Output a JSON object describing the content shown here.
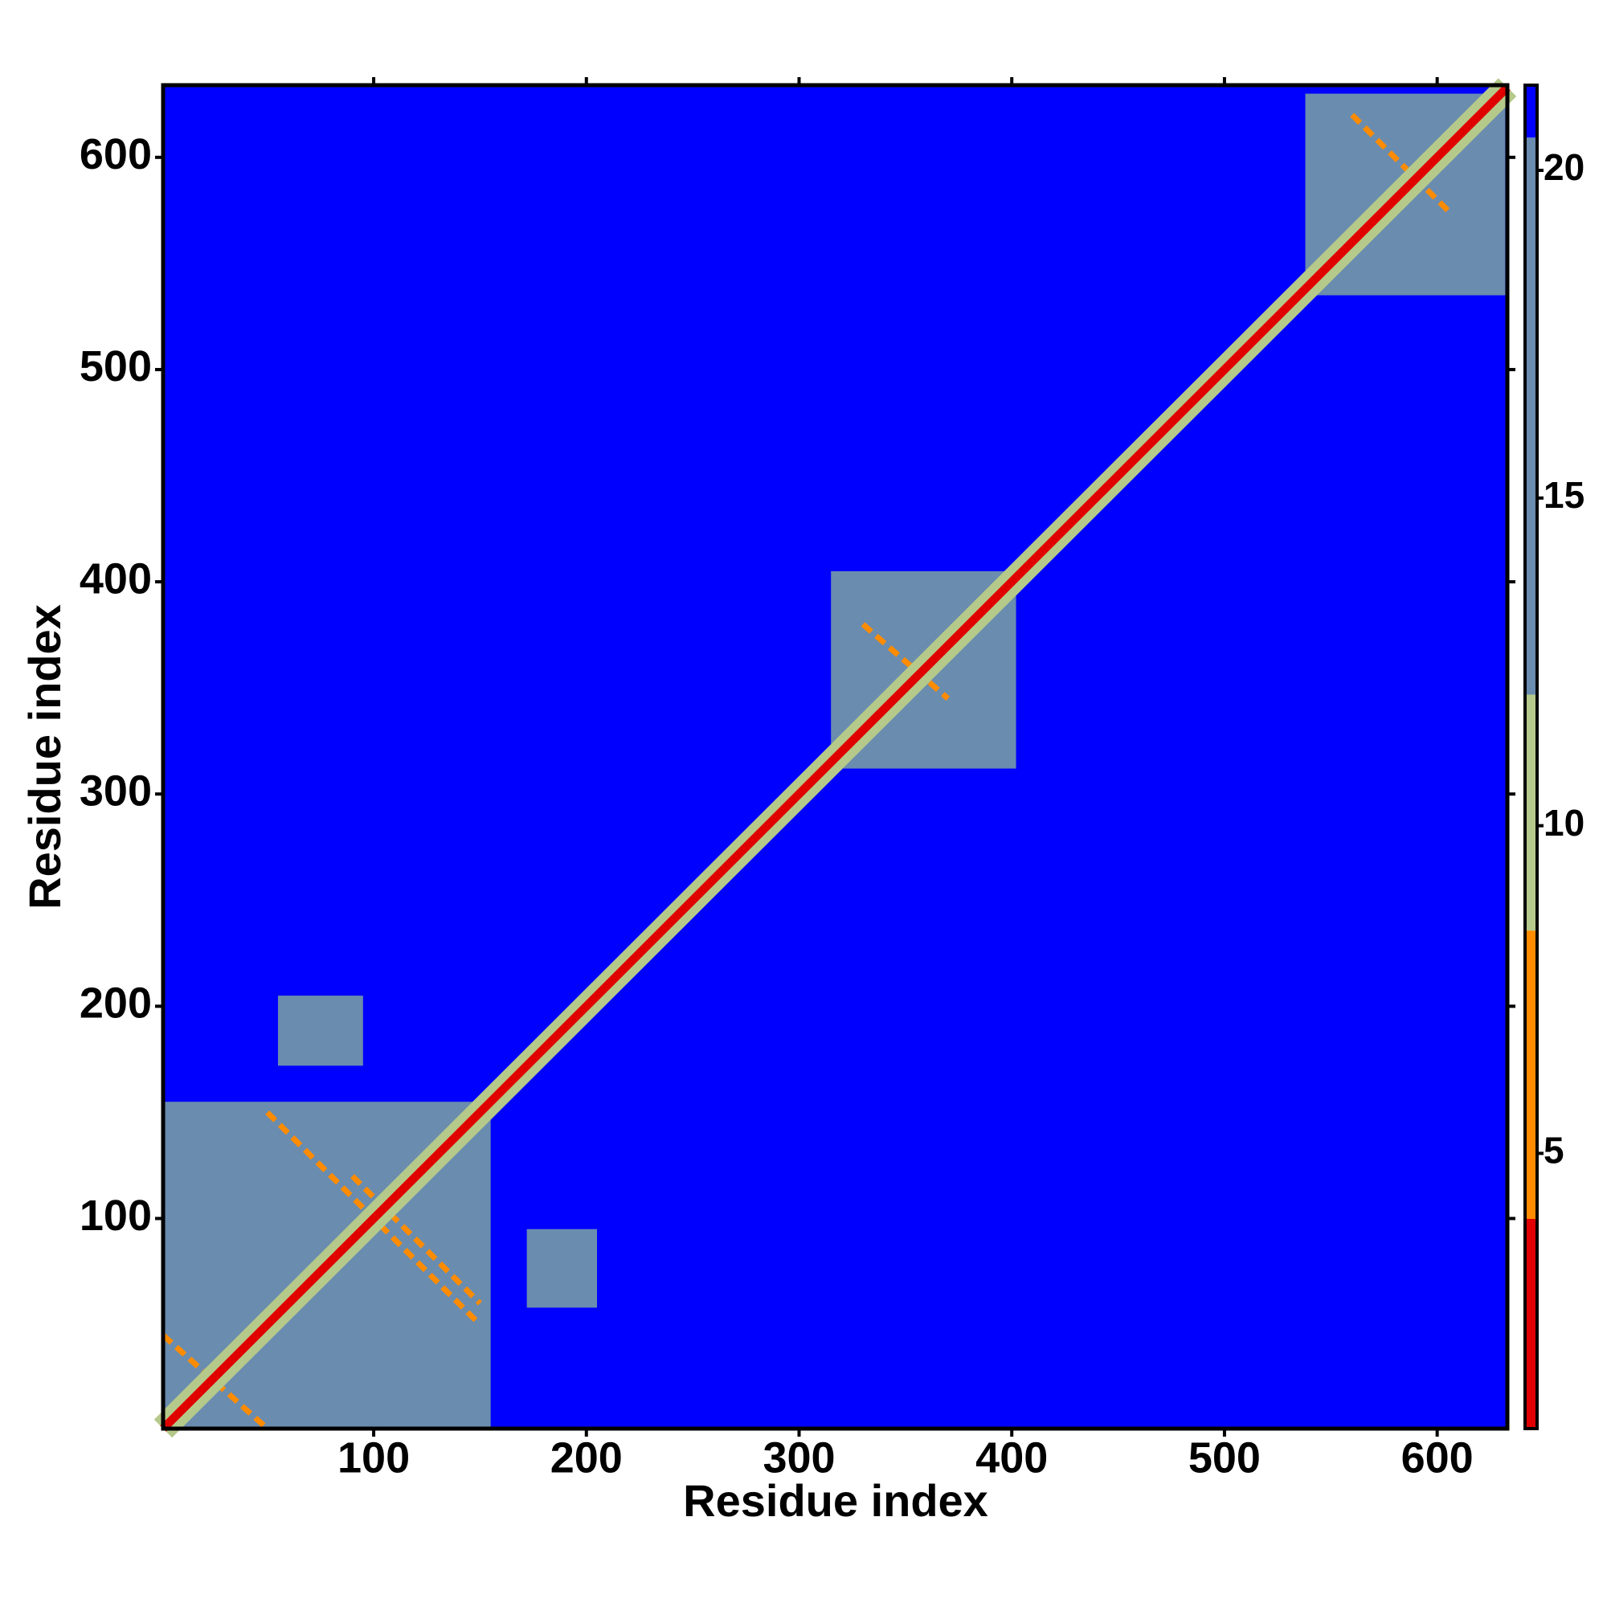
{
  "chart_data": {
    "type": "heatmap",
    "x_label": "Residue index",
    "y_label": "Residue index",
    "xlim": [
      1,
      633
    ],
    "ylim": [
      1,
      634
    ],
    "xticks": [
      100,
      200,
      300,
      400,
      500,
      600
    ],
    "yticks": [
      100,
      200,
      300,
      400,
      500,
      600
    ],
    "background_value": 21,
    "colorbar": {
      "lim": [
        0.8,
        21.3
      ],
      "ticks": [
        5,
        10,
        15,
        20
      ],
      "breaks": [
        0.8,
        4,
        8.4,
        12,
        20.5,
        21.3
      ],
      "colors": [
        "#e00000",
        "#ff8c00",
        "#b5c98a",
        "#6a8caf",
        "#0000ff"
      ]
    },
    "cells": [
      {
        "x": [
          1,
          155
        ],
        "y": [
          1,
          155
        ],
        "value": 17
      },
      {
        "x": [
          315,
          402
        ],
        "y": [
          312,
          405
        ],
        "value": 17
      },
      {
        "x": [
          538,
          632
        ],
        "y": [
          535,
          630
        ],
        "value": 17
      },
      {
        "x": [
          55,
          95
        ],
        "y": [
          172,
          205
        ],
        "value": 18
      },
      {
        "x": [
          172,
          205
        ],
        "y": [
          58,
          95
        ],
        "value": 18
      },
      {
        "x": [
          372,
          395
        ],
        "y": [
          325,
          345
        ],
        "value": 18
      },
      {
        "x": [
          322,
          345
        ],
        "y": [
          370,
          395
        ],
        "value": 18
      }
    ],
    "bands": [
      {
        "from": 1,
        "to": 633,
        "width": 12,
        "value": 10
      },
      {
        "from": 1,
        "to": 633,
        "width": 4,
        "value": 2
      }
    ],
    "lines": [
      {
        "x": [
          50,
          150
        ],
        "y": [
          150,
          50
        ],
        "value": 6
      },
      {
        "x": [
          1,
          50
        ],
        "y": [
          45,
          1
        ],
        "value": 6
      },
      {
        "x": [
          90,
          150
        ],
        "y": [
          120,
          60
        ],
        "value": 6
      },
      {
        "x": [
          330,
          370
        ],
        "y": [
          380,
          345
        ],
        "value": 6
      },
      {
        "x": [
          560,
          605
        ],
        "y": [
          620,
          575
        ],
        "value": 6
      }
    ]
  }
}
